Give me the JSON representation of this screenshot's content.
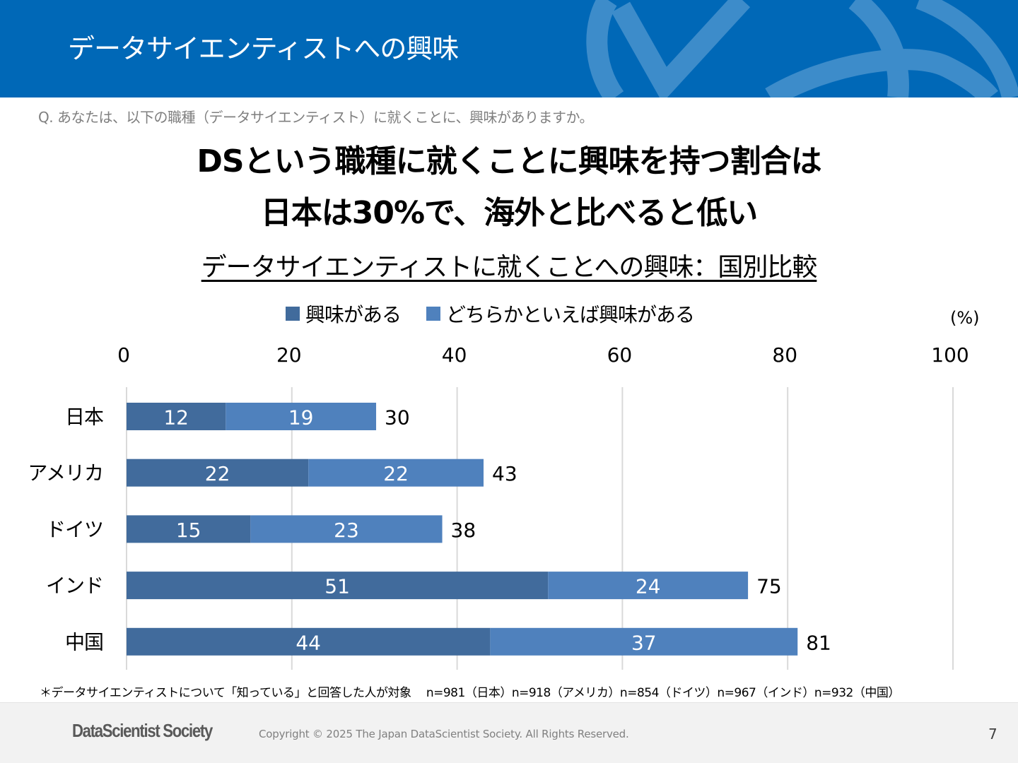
{
  "header": {
    "title": "データサイエンティストへの興味"
  },
  "question": "Q. あなたは、以下の職種（データサイエンティスト）に就くことに、興味がありますか。",
  "headline": {
    "line1": "DSという職種に就くことに興味を持つ割合は",
    "line2": "日本は30%で、海外と比べると低い"
  },
  "colors": {
    "header_bg": "#0068b7",
    "header_deco": "#3d8cca",
    "series_interested": "#416b9c",
    "series_somewhat": "#4f81bd",
    "gridline": "#d9d9d9"
  },
  "chart_data": {
    "type": "bar",
    "orientation": "horizontal",
    "stacked": true,
    "title": "データサイエンティストに就くことへの興味：国別比較",
    "unit_label": "(%)",
    "xlabel": "",
    "ylabel": "",
    "xlim": [
      0,
      100
    ],
    "x_ticks": [
      0,
      20,
      40,
      60,
      80,
      100
    ],
    "x_tick_labels": [
      "0",
      "20",
      "40",
      "60",
      "80",
      "100"
    ],
    "x_axis_position": "top",
    "grid": true,
    "legend_position": "top",
    "categories": [
      "日本",
      "アメリカ",
      "ドイツ",
      "インド",
      "中国"
    ],
    "series": [
      {
        "name": "興味がある",
        "color": "#416b9c",
        "values": [
          12,
          22,
          15,
          51,
          44
        ]
      },
      {
        "name": "どちらかといえば興味がある",
        "color": "#4f81bd",
        "values": [
          19,
          22,
          23,
          24,
          37
        ]
      }
    ],
    "totals": [
      30,
      43,
      38,
      75,
      81
    ]
  },
  "note": "＊データサイエンティストについて「知っている」と回答した人が対象　 n=981（日本）n=918（アメリカ）n=854（ドイツ）n=967（インド）n=932（中国）",
  "footer": {
    "logo": "DataScientist Society",
    "copyright": "Copyright © 2025 The Japan DataScientist Society. All Rights Reserved.",
    "page_number": "7"
  }
}
